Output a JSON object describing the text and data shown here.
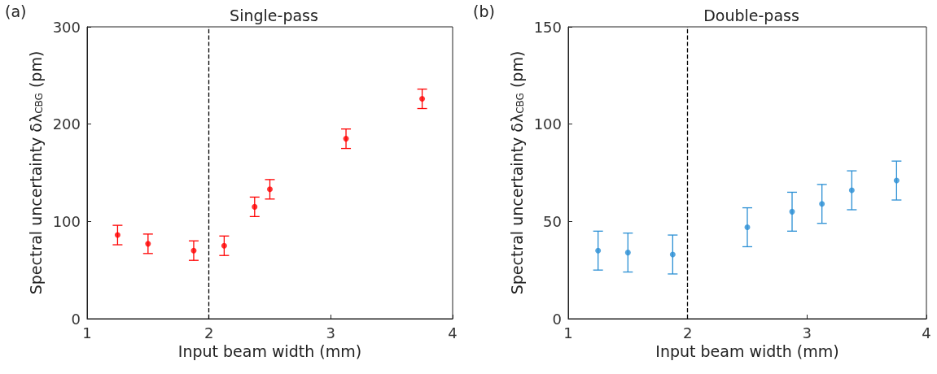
{
  "chart_data": [
    {
      "type": "scatter",
      "title": "Single-pass",
      "xlabel": "Input beam width (mm)",
      "ylabel": "Spectral uncertainty δλ$_{CBG}$ (pm)",
      "annotations": [
        "(a)"
      ],
      "x": [
        1.25,
        1.5,
        1.875,
        2.125,
        2.375,
        2.5,
        3.125,
        3.75
      ],
      "series": [
        {
          "color": "#ff0000",
          "values": [
            86,
            77,
            70,
            75,
            115,
            133,
            185,
            226
          ],
          "errors": [
            10,
            10,
            10,
            10,
            10,
            10,
            10,
            10
          ]
        }
      ],
      "xlim": [
        1,
        4
      ],
      "xticks": [
        1,
        2,
        3,
        4
      ],
      "ylim": [
        0,
        300
      ],
      "yticks": [
        0,
        100,
        200,
        300
      ],
      "grid": false,
      "marker": "circle",
      "ref_lines": [
        {
          "axis": "x",
          "value": 2,
          "color": "#000000",
          "line_style": "dashed"
        }
      ]
    },
    {
      "type": "scatter",
      "title": "Double-pass",
      "xlabel": "Input beam width (mm)",
      "ylabel": "Spectral uncertainty δλ$_{CBG}$ (pm)",
      "annotations": [
        "(b)"
      ],
      "x": [
        1.25,
        1.5,
        1.875,
        2.5,
        2.875,
        3.125,
        3.375,
        3.75
      ],
      "series": [
        {
          "color": "#2a8fd4",
          "values": [
            35,
            34,
            33,
            47,
            55,
            59,
            66,
            71
          ],
          "errors": [
            10,
            10,
            10,
            10,
            10,
            10,
            10,
            10
          ]
        }
      ],
      "xlim": [
        1,
        4
      ],
      "xticks": [
        1,
        2,
        3,
        4
      ],
      "ylim": [
        0,
        150
      ],
      "yticks": [
        0,
        50,
        100,
        150
      ],
      "grid": false,
      "marker": "circle",
      "ref_lines": [
        {
          "axis": "x",
          "value": 2,
          "color": "#000000",
          "line_style": "dashed"
        }
      ]
    }
  ]
}
